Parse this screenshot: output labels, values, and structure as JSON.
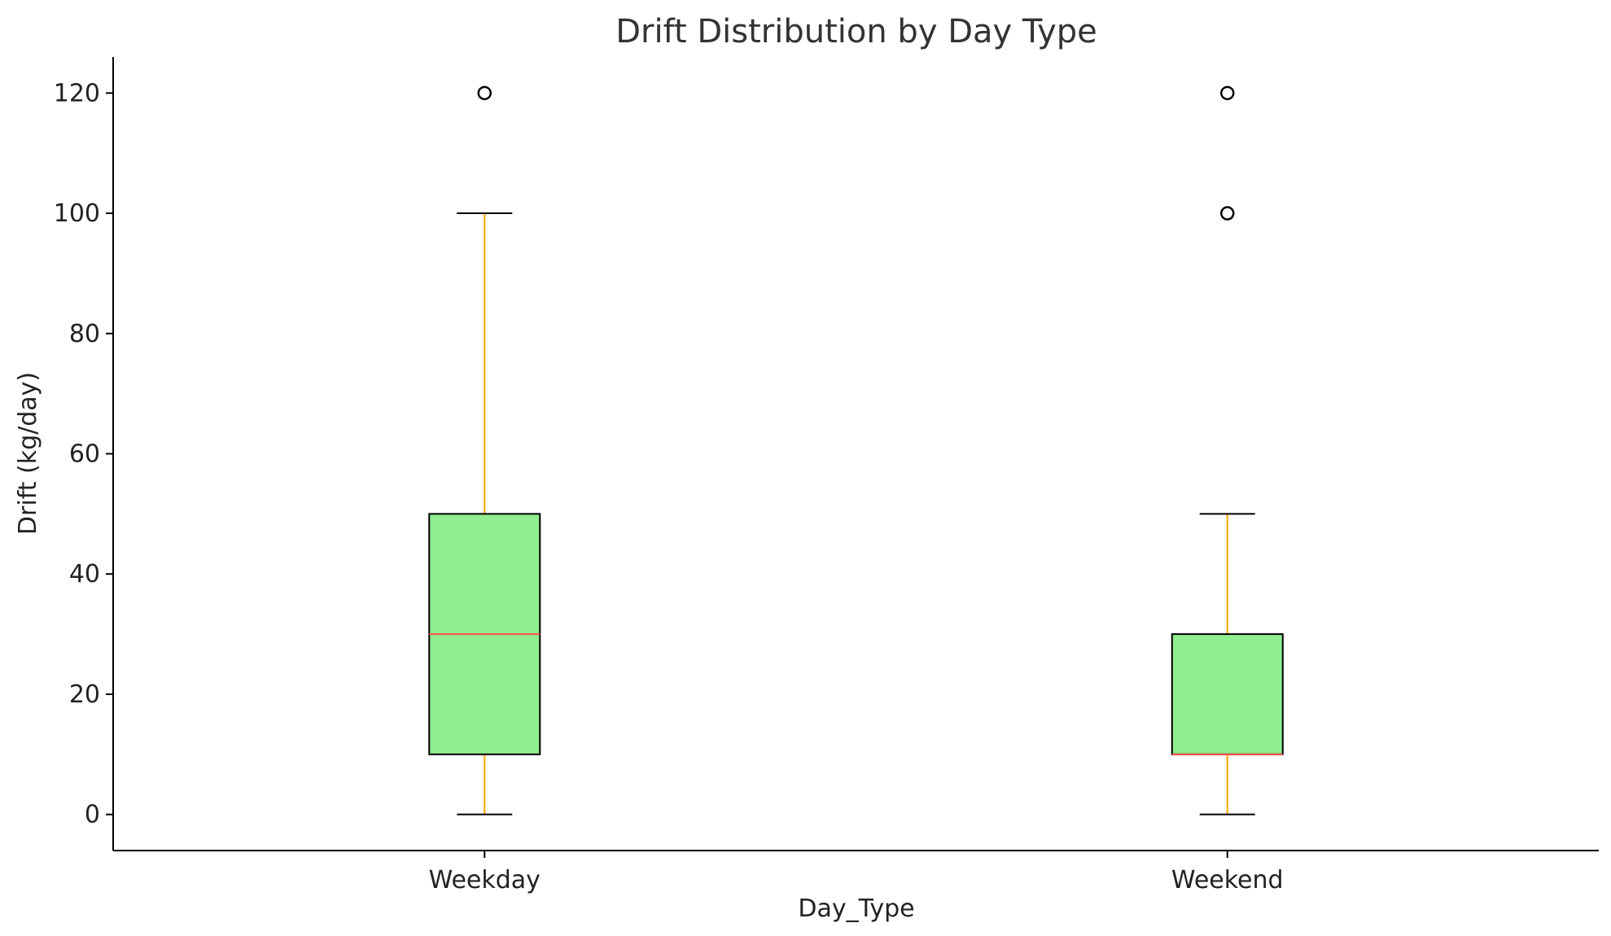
{
  "chart_data": {
    "type": "box",
    "title": "Drift Distribution by Day Type",
    "xlabel": "Day_Type",
    "ylabel": "Drift (kg/day)",
    "categories": [
      "Weekday",
      "Weekend"
    ],
    "ylim": [
      -6,
      126
    ],
    "yticks": [
      0,
      20,
      40,
      60,
      80,
      100,
      120
    ],
    "grid": false,
    "legend": "none",
    "boxes": [
      {
        "category": "Weekday",
        "whisker_low": 0,
        "q1": 10,
        "median": 30,
        "q3": 50,
        "whisker_high": 100,
        "outliers": [
          120
        ]
      },
      {
        "category": "Weekend",
        "whisker_low": 0,
        "q1": 10,
        "median": 10,
        "q3": 30,
        "whisker_high": 50,
        "outliers": [
          100,
          120
        ]
      }
    ],
    "colors": {
      "box_fill": "#90ee90",
      "box_edge": "#000000",
      "median": "#ff4d4d",
      "whisker": "#ffa500",
      "cap": "#000000",
      "outlier": "#000000",
      "axis": "#000000"
    }
  }
}
